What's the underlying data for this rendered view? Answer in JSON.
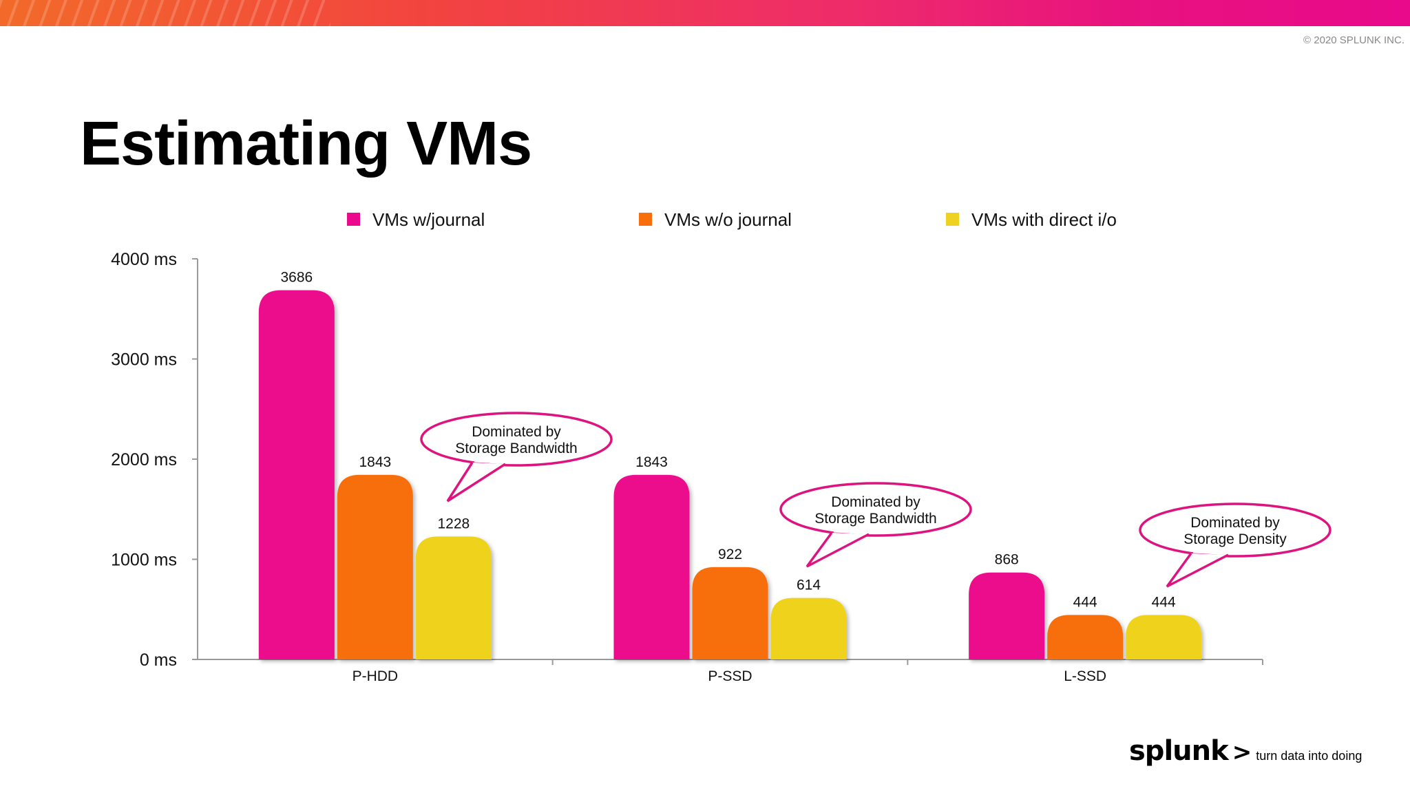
{
  "header": {
    "copyright": "© 2020 SPLUNK INC."
  },
  "slide": {
    "title": "Estimating VMs"
  },
  "brand": {
    "logo": "splunk",
    "chevron": ">",
    "tagline": "turn data into doing"
  },
  "colors": {
    "series1": "#ec0a8c",
    "series2": "#f76e0a",
    "series3": "#eed21f",
    "callout_border": "#dd1480"
  },
  "chart_data": {
    "type": "bar",
    "categories": [
      "P-HDD",
      "P-SSD",
      "L-SSD"
    ],
    "series": [
      {
        "name": "VMs w/journal",
        "values": [
          3686,
          1843,
          868
        ]
      },
      {
        "name": "VMs w/o journal",
        "values": [
          1843,
          922,
          444
        ]
      },
      {
        "name": "VMs with direct i/o",
        "values": [
          1228,
          614,
          444
        ]
      }
    ],
    "yticks": [
      "0 ms",
      "1000 ms",
      "2000 ms",
      "3000 ms",
      "4000 ms"
    ],
    "ylim": [
      0,
      4000
    ],
    "legend_position": "top",
    "grid": false,
    "annotations": [
      {
        "category": "P-HDD",
        "lines": [
          "Dominated by",
          "Storage Bandwidth"
        ]
      },
      {
        "category": "P-SSD",
        "lines": [
          "Dominated by",
          "Storage Bandwidth"
        ]
      },
      {
        "category": "L-SSD",
        "lines": [
          "Dominated by",
          "Storage Density"
        ]
      }
    ]
  }
}
